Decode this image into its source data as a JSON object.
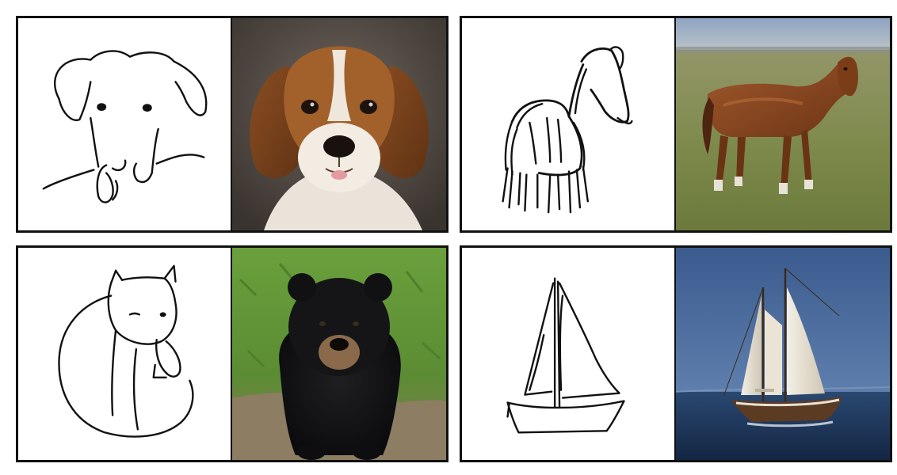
{
  "panels": [
    {
      "sketch": "dog-sketch",
      "photo": "beagle-photo"
    },
    {
      "sketch": "horse-sketch",
      "photo": "horse-photo"
    },
    {
      "sketch": "bear-sketch",
      "photo": "black-bear-photo"
    },
    {
      "sketch": "sailboat-sketch",
      "photo": "sailboat-photo"
    }
  ],
  "colors": {
    "frame": "#111111",
    "sketch_background": "#ffffff",
    "dog_fur": "#9a5a2a",
    "grass": "#7f8f4e",
    "sky": "#3f5f93",
    "sea": "#1e3456"
  }
}
